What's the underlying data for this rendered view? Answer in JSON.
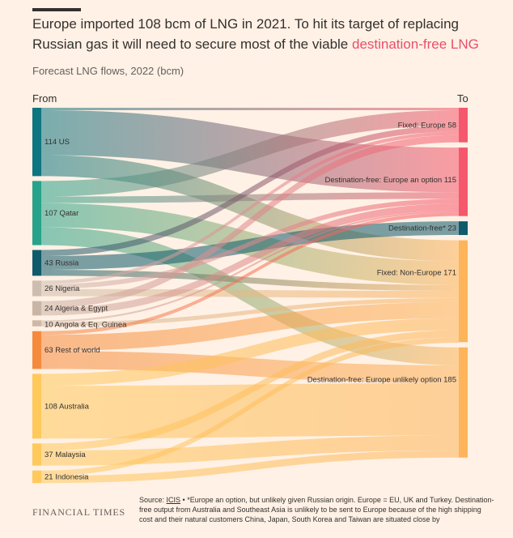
{
  "title_main": "Europe imported 108 bcm of LNG in 2021. To hit its target of replacing Russian gas it will need to secure most of the viable ",
  "title_highlight": "destination-free LNG",
  "subtitle": "Forecast LNG flows, 2022 (bcm)",
  "from_label": "From",
  "to_label": "To",
  "footer": {
    "brand": "FINANCIAL TIMES",
    "source_prefix": "Source: ",
    "source_org": "ICIS",
    "source_rest": " • *Europe an option, but unlikely given Russian origin. Europe = EU, UK and Turkey. Destination-free output from Australia and Southeast Asia is unlikely to be sent to Europe because of the high shipping cost and their natural customers China, Japan, South Korea and Taiwan are situated close by"
  },
  "colors": {
    "us": "#0D7680",
    "qatar": "#26A38A",
    "russia": "#0F5A6B",
    "nigeria": "#CDBDB0",
    "algeria": "#C9B5A6",
    "angola": "#CEB8A6",
    "rest": "#F58A3D",
    "australia": "#FFC95C",
    "malaysia": "#FFC95C",
    "indonesia": "#FFC95C",
    "fixed_europe": "#F5576C",
    "dest_free_europe": "#F5576C",
    "dest_free_star": "#0F5A6B",
    "fixed_non_europe": "#FDB45A",
    "dest_free_unlikely": "#FDB45A"
  },
  "chart_data": {
    "type": "sankey",
    "units": "bcm",
    "sources": [
      {
        "id": "us",
        "label": "114 US",
        "value": 114
      },
      {
        "id": "qatar",
        "label": "107 Qatar",
        "value": 107
      },
      {
        "id": "russia",
        "label": "43 Russia",
        "value": 43
      },
      {
        "id": "nigeria",
        "label": "26 Nigeria",
        "value": 26
      },
      {
        "id": "algeria",
        "label": "24 Algeria & Egypt",
        "value": 24
      },
      {
        "id": "angola",
        "label": "10 Angola & Eq. Guinea",
        "value": 10
      },
      {
        "id": "rest",
        "label": "63 Rest of world",
        "value": 63
      },
      {
        "id": "australia",
        "label": "108 Australia",
        "value": 108
      },
      {
        "id": "malaysia",
        "label": "37 Malaysia",
        "value": 37
      },
      {
        "id": "indonesia",
        "label": "21 Indonesia",
        "value": 21
      }
    ],
    "targets": [
      {
        "id": "fixed_europe",
        "label": "Fixed: Europe 58",
        "value": 58
      },
      {
        "id": "dest_free_europe",
        "label": "Destination-free: Europe an option 115",
        "value": 115
      },
      {
        "id": "dest_free_star",
        "label": "Destination-free* 23",
        "value": 23
      },
      {
        "id": "fixed_non_europe",
        "label": "Fixed: Non-Europe 171",
        "value": 171
      },
      {
        "id": "dest_free_unlikely",
        "label": "Destination-free: Europe unlikely option 185",
        "value": 185
      }
    ],
    "flows": [
      {
        "from": "us",
        "to": "fixed_europe",
        "value": 4
      },
      {
        "from": "us",
        "to": "dest_free_europe",
        "value": 75
      },
      {
        "from": "us",
        "to": "fixed_non_europe",
        "value": 35
      },
      {
        "from": "qatar",
        "to": "fixed_europe",
        "value": 26
      },
      {
        "from": "qatar",
        "to": "dest_free_europe",
        "value": 11
      },
      {
        "from": "qatar",
        "to": "fixed_non_europe",
        "value": 40
      },
      {
        "from": "qatar",
        "to": "dest_free_unlikely",
        "value": 30
      },
      {
        "from": "russia",
        "to": "fixed_europe",
        "value": 10
      },
      {
        "from": "russia",
        "to": "dest_free_star",
        "value": 23
      },
      {
        "from": "russia",
        "to": "fixed_non_europe",
        "value": 10
      },
      {
        "from": "nigeria",
        "to": "fixed_europe",
        "value": 6
      },
      {
        "from": "nigeria",
        "to": "dest_free_europe",
        "value": 8
      },
      {
        "from": "nigeria",
        "to": "fixed_non_europe",
        "value": 12
      },
      {
        "from": "algeria",
        "to": "fixed_europe",
        "value": 12
      },
      {
        "from": "algeria",
        "to": "dest_free_europe",
        "value": 12
      },
      {
        "from": "angola",
        "to": "dest_free_europe",
        "value": 3
      },
      {
        "from": "angola",
        "to": "fixed_non_europe",
        "value": 7
      },
      {
        "from": "rest",
        "to": "dest_free_europe",
        "value": 6
      },
      {
        "from": "rest",
        "to": "fixed_non_europe",
        "value": 27
      },
      {
        "from": "rest",
        "to": "dest_free_unlikely",
        "value": 30
      },
      {
        "from": "australia",
        "to": "fixed_non_europe",
        "value": 20
      },
      {
        "from": "australia",
        "to": "dest_free_unlikely",
        "value": 88
      },
      {
        "from": "malaysia",
        "to": "fixed_non_europe",
        "value": 12
      },
      {
        "from": "malaysia",
        "to": "dest_free_unlikely",
        "value": 25
      },
      {
        "from": "indonesia",
        "to": "fixed_non_europe",
        "value": 9
      },
      {
        "from": "indonesia",
        "to": "dest_free_unlikely",
        "value": 12
      }
    ]
  }
}
